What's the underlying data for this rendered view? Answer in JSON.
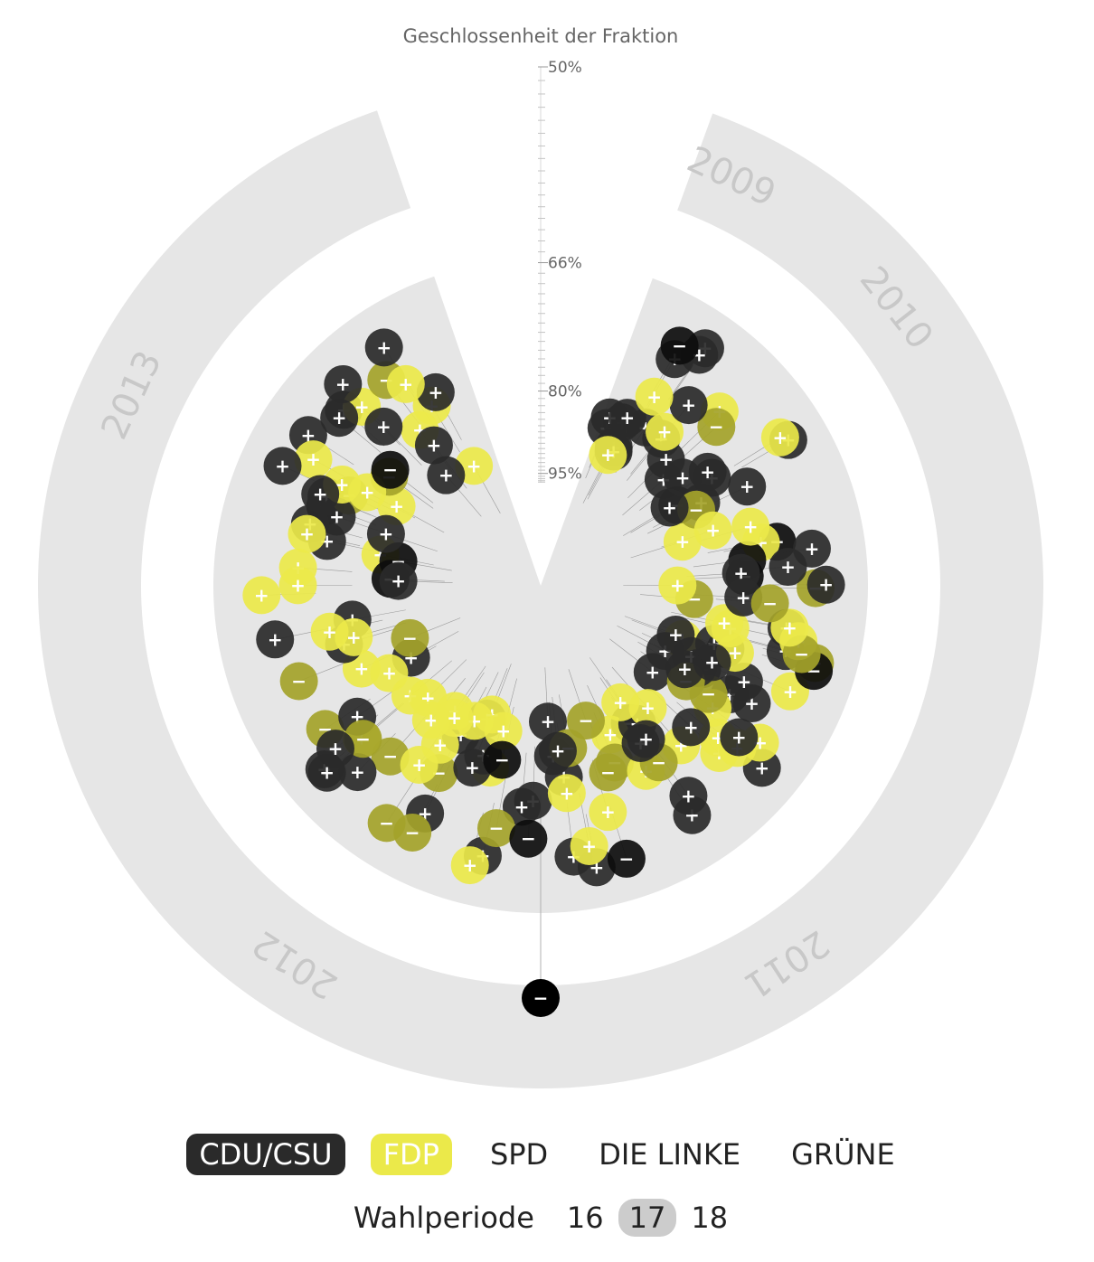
{
  "chart_data": {
    "type": "scatter",
    "title": "Geschlossenheit der Fraktion",
    "ylabel": "Geschlossenheit der Fraktion",
    "radial_scale_ticks": [
      "50%",
      "66%",
      "80%",
      "95%"
    ],
    "radial_tick_values": [
      50,
      66,
      80,
      95
    ],
    "radial_range": [
      50,
      100
    ],
    "angular_axis": "time",
    "time_labels": [
      "2009",
      "2010",
      "2011",
      "2012",
      "2013"
    ],
    "series": [
      {
        "name": "CDU/CSU",
        "color": "#2a2a2a"
      },
      {
        "name": "FDP",
        "color": "#ebe94a"
      }
    ],
    "outlier": {
      "value": 50,
      "sign": "−",
      "party": "CDU/CSU"
    }
  },
  "colors": {
    "cdu": "#2a2a2a",
    "cdu_deep": "#0d0d0d",
    "fdp": "#ebe94a",
    "fdp_muted": "#a4a32a",
    "band": "#e6e6e6",
    "year_text": "#c8c8c8"
  },
  "legend": {
    "parties": [
      "CDU/CSU",
      "FDP",
      "SPD",
      "DIE LINKE",
      "GRÜNE"
    ]
  },
  "periods": {
    "label": "Wahlperiode",
    "values": [
      "16",
      "17",
      "18"
    ],
    "active": "17"
  }
}
